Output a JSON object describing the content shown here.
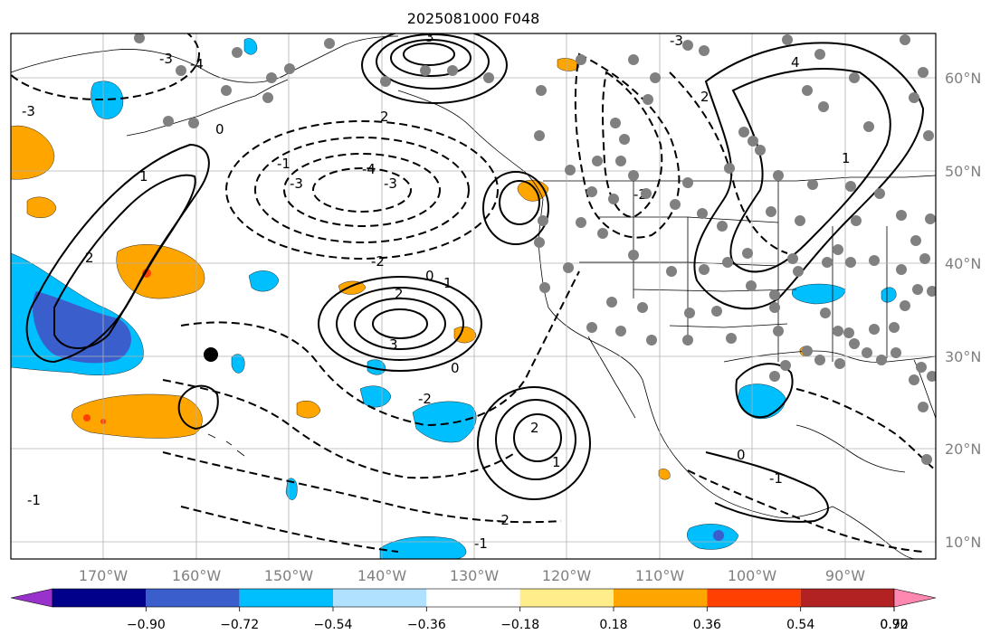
{
  "title": "2025081000 F048",
  "map": {
    "lat_labels": [
      "60°N",
      "50°N",
      "40°N",
      "30°N",
      "20°N",
      "10°N"
    ],
    "lon_labels": [
      "170°W",
      "160°W",
      "150°W",
      "140°W",
      "130°W",
      "120°W",
      "110°W",
      "100°W",
      "90°W"
    ],
    "contour_labels": [
      "3",
      "2",
      "1",
      "0",
      "-1",
      "-2",
      "-3",
      "-4",
      "3",
      "2",
      "1",
      "0",
      "-2",
      "-3",
      "2",
      "1",
      "0",
      "-1",
      "-3",
      "4",
      "2",
      "1",
      "0",
      "-1",
      "-2",
      "-3",
      "-4",
      "2",
      "-1",
      "-2",
      "-3"
    ],
    "colors": {
      "land_outline": "#000000",
      "grid": "#b0b0b0",
      "station_dot": "#808080",
      "marker": "#000000"
    }
  },
  "colorbar": {
    "colors": [
      "#9932cc",
      "#00008b",
      "#3a5fcd",
      "#00bfff",
      "#b0e2ff",
      "#ffffff",
      "#ffec8b",
      "#ffa500",
      "#ff4000",
      "#b22222",
      "#ff88b0"
    ],
    "ticks": [
      "−0.90",
      "−0.72",
      "−0.54",
      "−0.36",
      "−0.18",
      "0.18",
      "0.36",
      "0.54",
      "0.72",
      "0.90"
    ]
  }
}
